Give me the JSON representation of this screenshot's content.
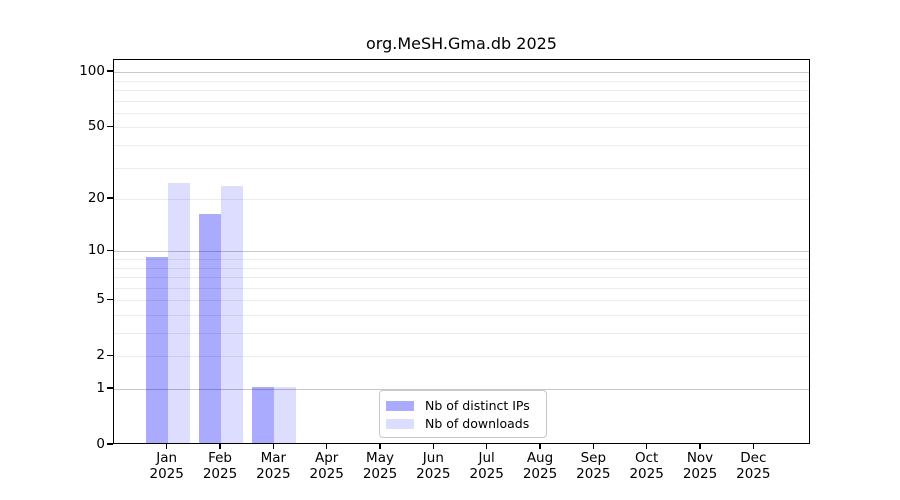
{
  "chart_data": {
    "type": "bar",
    "title": "org.MeSH.Gma.db 2025",
    "categories": [
      "Jan",
      "Feb",
      "Mar",
      "Apr",
      "May",
      "Jun",
      "Jul",
      "Aug",
      "Sep",
      "Oct",
      "Nov",
      "Dec"
    ],
    "xtick_sublabel": "2025",
    "series": [
      {
        "name": "Nb of distinct IPs",
        "color": "#AAAAFF",
        "values": [
          9,
          16,
          1,
          0,
          0,
          0,
          0,
          0,
          0,
          0,
          0,
          0
        ]
      },
      {
        "name": "Nb of downloads",
        "color": "#DDDDFF",
        "values": [
          24,
          23,
          1,
          0,
          0,
          0,
          0,
          0,
          0,
          0,
          0,
          0
        ]
      }
    ],
    "xlabel": "",
    "ylabel": "",
    "yscale": "log1p",
    "ylim": [
      0,
      116
    ],
    "ytick_values": [
      0,
      1,
      2,
      5,
      10,
      20,
      50,
      100
    ],
    "ytick_labels": [
      "0",
      "1",
      "2",
      "5",
      "10",
      "20",
      "50",
      "100"
    ],
    "grid_major_values": [
      1,
      10,
      100
    ],
    "grid_minor_values": [
      2,
      3,
      4,
      5,
      6,
      7,
      8,
      9,
      20,
      30,
      40,
      50,
      60,
      70,
      80,
      90
    ],
    "legend_position": "bottom-center",
    "colors": {
      "grid_major": "#c7c7c7",
      "grid_minor": "#ececec",
      "axis": "#000000",
      "text": "#000000",
      "background": "#ffffff"
    }
  }
}
